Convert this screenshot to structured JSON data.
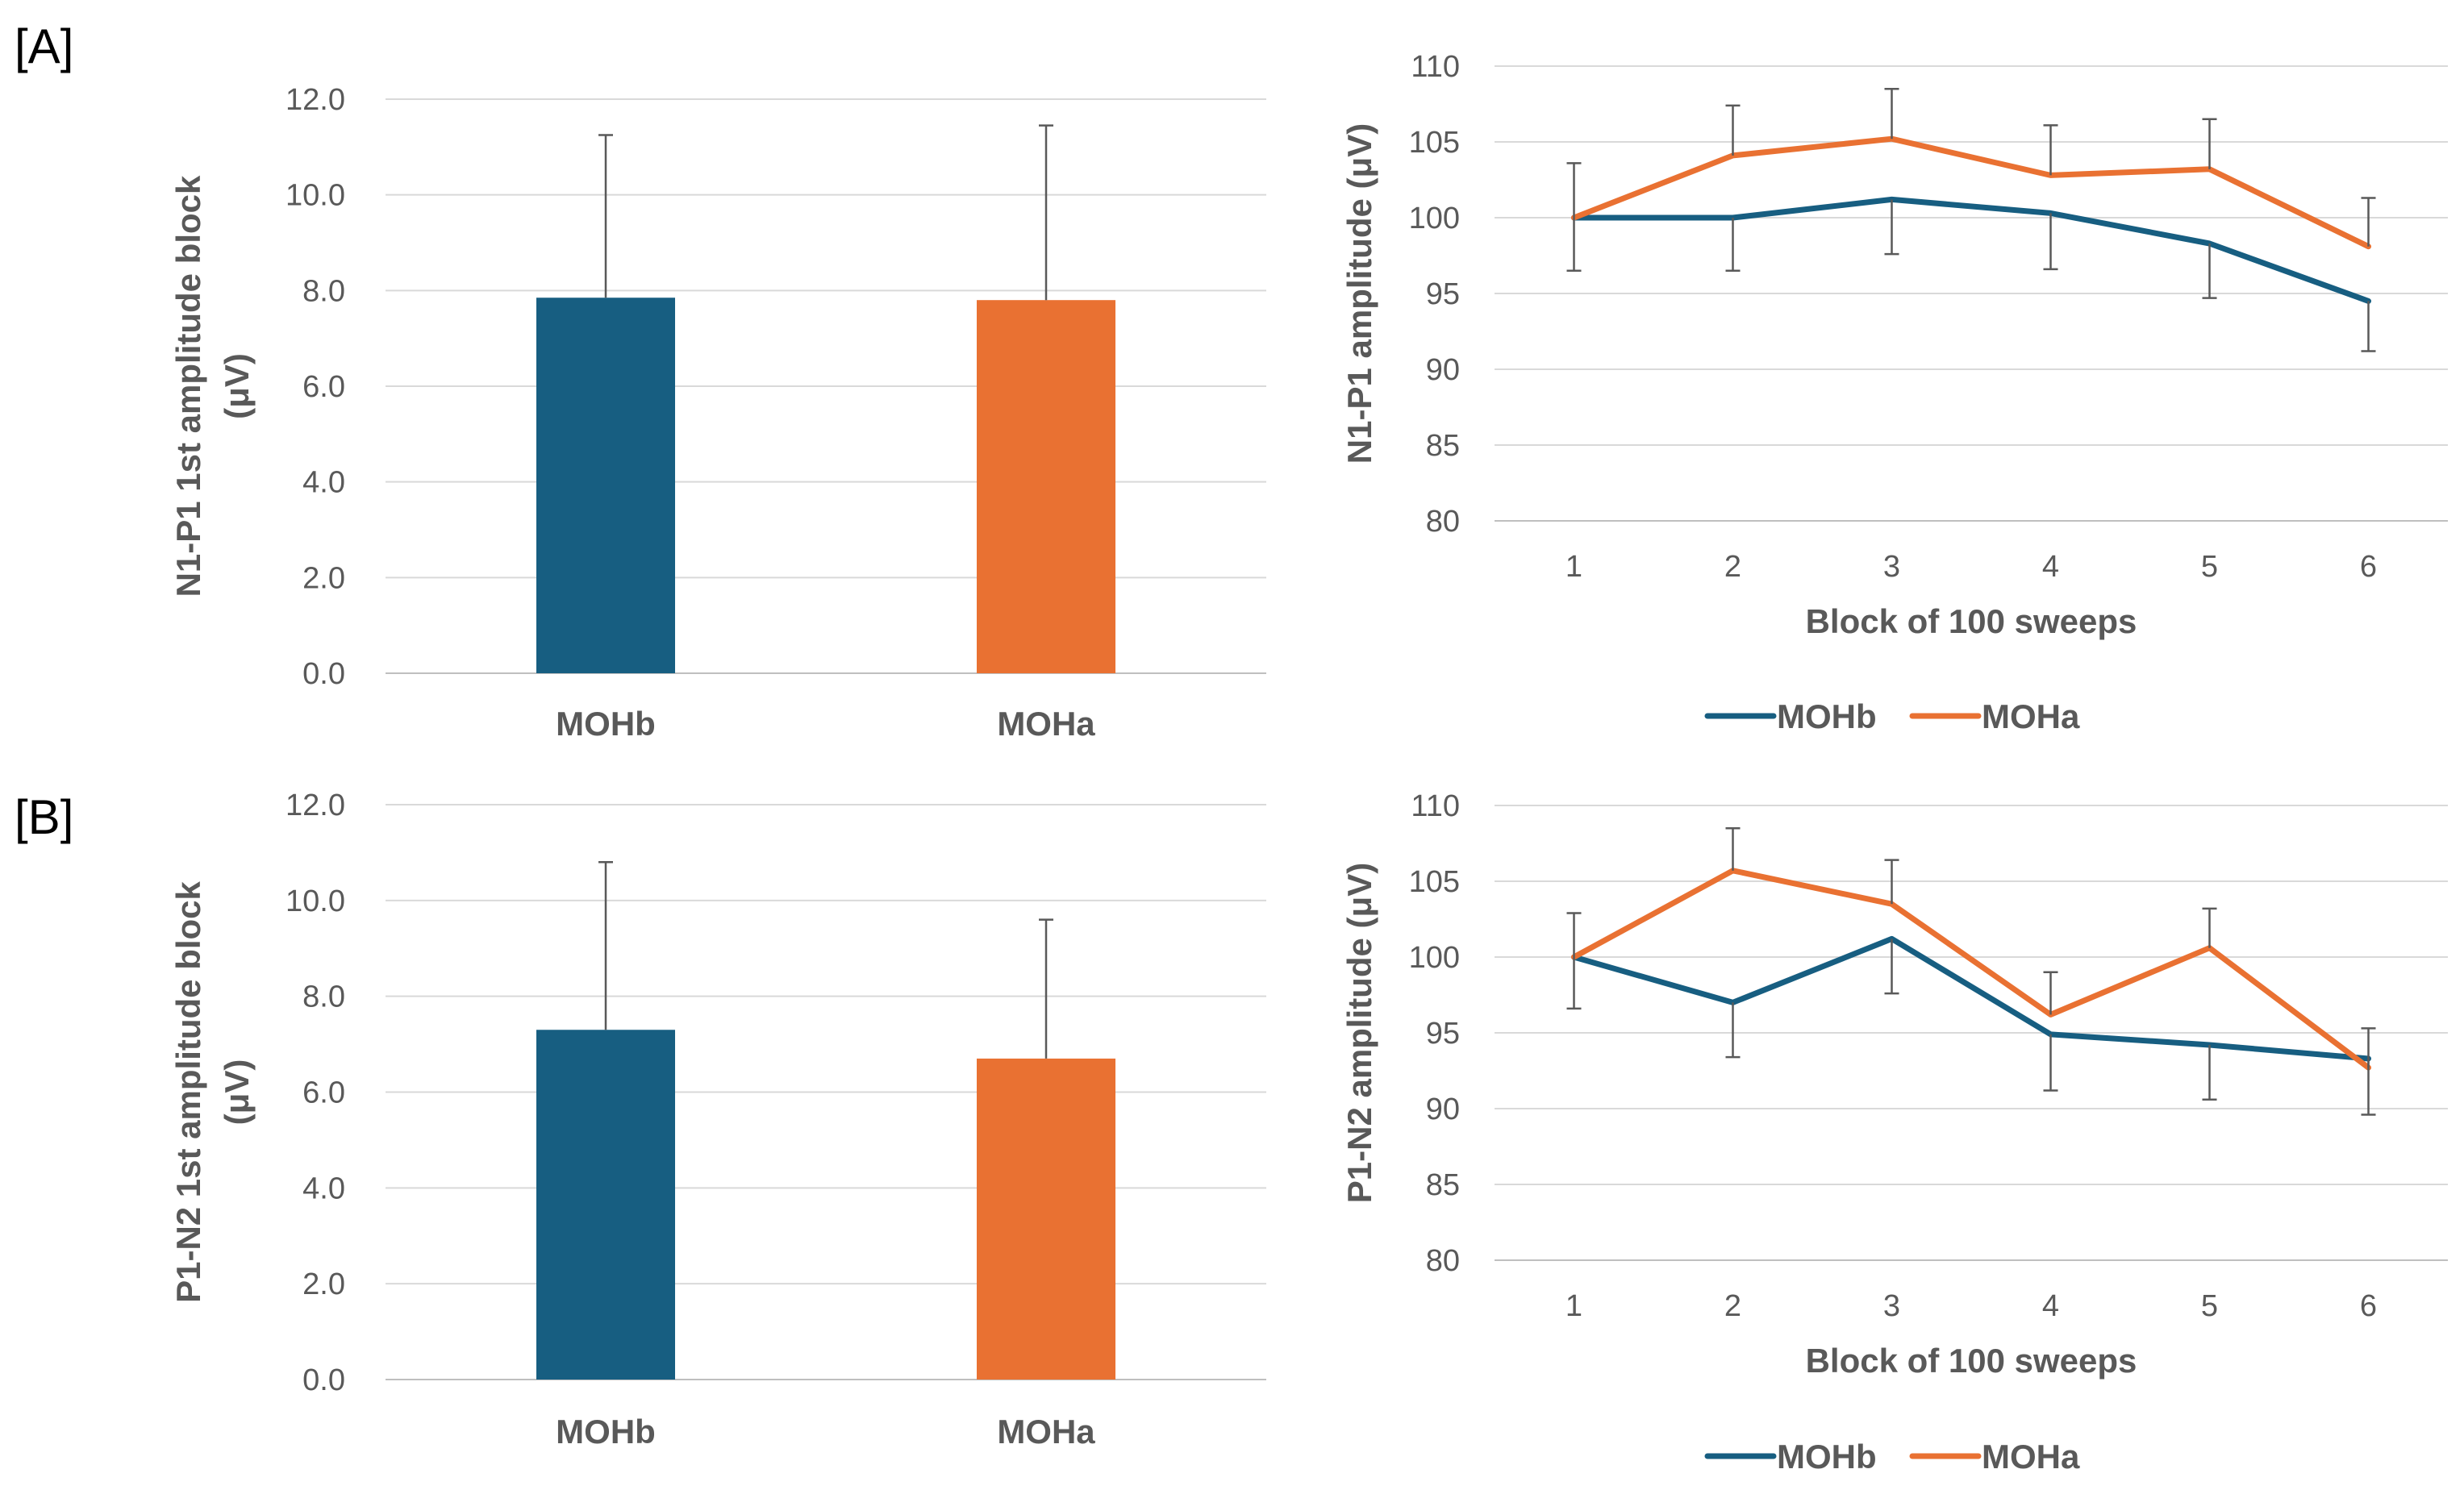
{
  "panels": [
    {
      "label": "[A]"
    },
    {
      "label": "[B]"
    }
  ],
  "colors": {
    "MOHb": "#175e81",
    "MOHa": "#e97132",
    "grid": "#d9d9d9",
    "axis": "#bfbfbf",
    "error": "#595959"
  },
  "chart_data": [
    {
      "panel": "[A]",
      "type": "bar",
      "categories": [
        "MOHb",
        "MOHa"
      ],
      "values": [
        7.85,
        7.8
      ],
      "error_upper": [
        3.4,
        3.65
      ],
      "ylabel": "N1-P1 1st amplitude block (μV)",
      "ylabel_lines": [
        "N1-P1 1st amplitude block",
        "(μV)"
      ],
      "ylim": [
        0,
        12
      ],
      "yticks": [
        "0.0",
        "2.0",
        "4.0",
        "6.0",
        "8.0",
        "10.0",
        "12.0"
      ],
      "grid": true
    },
    {
      "panel": "[A]",
      "type": "line",
      "x": [
        "1",
        "2",
        "3",
        "4",
        "5",
        "6"
      ],
      "series": [
        {
          "name": "MOHb",
          "values": [
            100,
            100,
            101.2,
            100.3,
            98.3,
            94.5
          ],
          "error_lower": [
            3.5,
            3.5,
            3.6,
            3.7,
            3.6,
            3.3
          ]
        },
        {
          "name": "MOHa",
          "values": [
            100,
            104.1,
            105.2,
            102.8,
            103.2,
            98.1
          ],
          "error_upper": [
            3.6,
            3.3,
            3.3,
            3.3,
            3.3,
            3.2
          ]
        }
      ],
      "xlabel": "Block of 100 sweeps",
      "ylabel": "N1-P1 amplitude (μV)",
      "ylim": [
        80,
        110
      ],
      "yticks": [
        "80",
        "85",
        "90",
        "95",
        "100",
        "105",
        "110"
      ],
      "legend": [
        "MOHb",
        "MOHa"
      ],
      "legend_position": "bottom",
      "grid": true
    },
    {
      "panel": "[B]",
      "type": "bar",
      "categories": [
        "MOHb",
        "MOHa"
      ],
      "values": [
        7.3,
        6.7
      ],
      "error_upper": [
        3.5,
        2.9
      ],
      "ylabel": "P1-N2 1st amplitude block (μV)",
      "ylabel_lines": [
        "P1-N2 1st amplitude block",
        "(μV)"
      ],
      "ylim": [
        0,
        12
      ],
      "yticks": [
        "0.0",
        "2.0",
        "4.0",
        "6.0",
        "8.0",
        "10.0",
        "12.0"
      ],
      "grid": true
    },
    {
      "panel": "[B]",
      "type": "line",
      "x": [
        "1",
        "2",
        "3",
        "4",
        "5",
        "6"
      ],
      "series": [
        {
          "name": "MOHb",
          "values": [
            100,
            97,
            101.2,
            94.9,
            94.2,
            93.3
          ],
          "error_lower": [
            3.4,
            3.6,
            3.6,
            3.7,
            3.6,
            3.7
          ]
        },
        {
          "name": "MOHa",
          "values": [
            100,
            105.7,
            103.5,
            96.2,
            100.6,
            92.7
          ],
          "error_upper": [
            2.9,
            2.8,
            2.9,
            2.8,
            2.6,
            2.6
          ]
        }
      ],
      "xlabel": "Block of 100 sweeps",
      "ylabel": "P1-N2 amplitude (μV)",
      "ylim": [
        80,
        110
      ],
      "yticks": [
        "80",
        "85",
        "90",
        "95",
        "100",
        "105",
        "110"
      ],
      "legend": [
        "MOHb",
        "MOHa"
      ],
      "legend_position": "bottom",
      "grid": true
    }
  ]
}
